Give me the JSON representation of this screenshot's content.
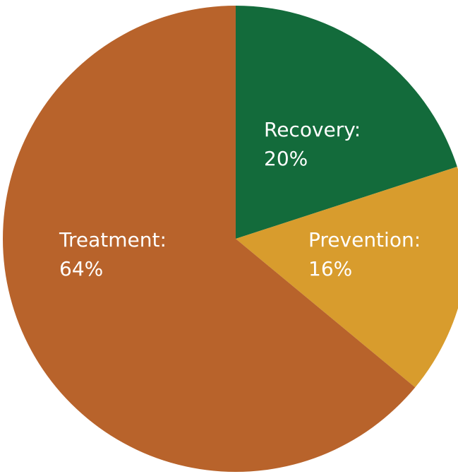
{
  "chart_data": {
    "type": "pie",
    "title": "",
    "start_angle_deg": 0,
    "direction": "clockwise",
    "slices": [
      {
        "name": "Recovery",
        "value": 20,
        "value_label": "20%",
        "label": "Recovery:",
        "color": "#136b3b"
      },
      {
        "name": "Prevention",
        "value": 16,
        "value_label": "16%",
        "label": "Prevention:",
        "color": "#d89c2d"
      },
      {
        "name": "Treatment",
        "value": 64,
        "value_label": "64%",
        "label": "Treatment:",
        "color": "#b8632b"
      }
    ]
  }
}
